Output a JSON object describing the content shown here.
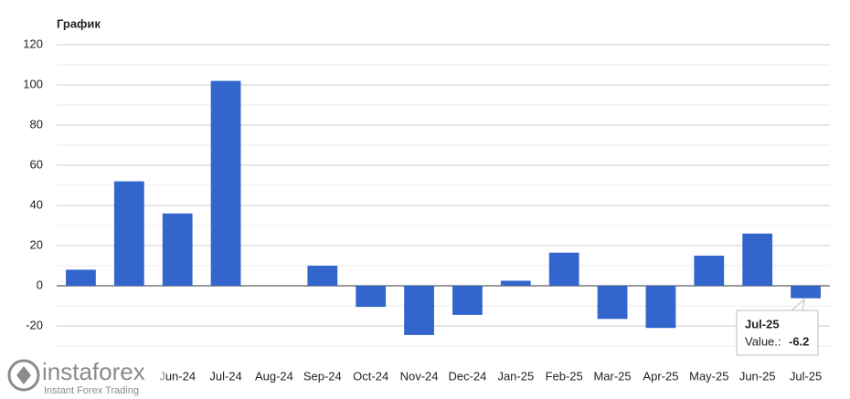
{
  "chart_data": {
    "type": "bar",
    "title": "График",
    "categories": [
      null,
      null,
      "Jun-24",
      "Jul-24",
      "Aug-24",
      "Sep-24",
      "Oct-24",
      "Nov-24",
      "Dec-24",
      "Jan-25",
      "Feb-25",
      "Mar-25",
      "Apr-25",
      "May-25",
      "Jun-25",
      "Jul-25"
    ],
    "values": [
      8,
      52,
      36,
      102,
      0,
      10,
      -10.5,
      -24.5,
      -14.5,
      2.5,
      16.5,
      -16.5,
      -21,
      15,
      26,
      -6.2
    ],
    "color": "#3366cc",
    "ylim": [
      -30,
      120
    ],
    "yticks": [
      -20,
      0,
      20,
      40,
      60,
      80,
      100,
      120
    ],
    "grid": true,
    "tooltip": {
      "category": "Jul-25",
      "label": "Value.:",
      "value": -6.2
    }
  },
  "watermark": {
    "brand": "instaforex",
    "tagline": "Instant Forex Trading"
  }
}
